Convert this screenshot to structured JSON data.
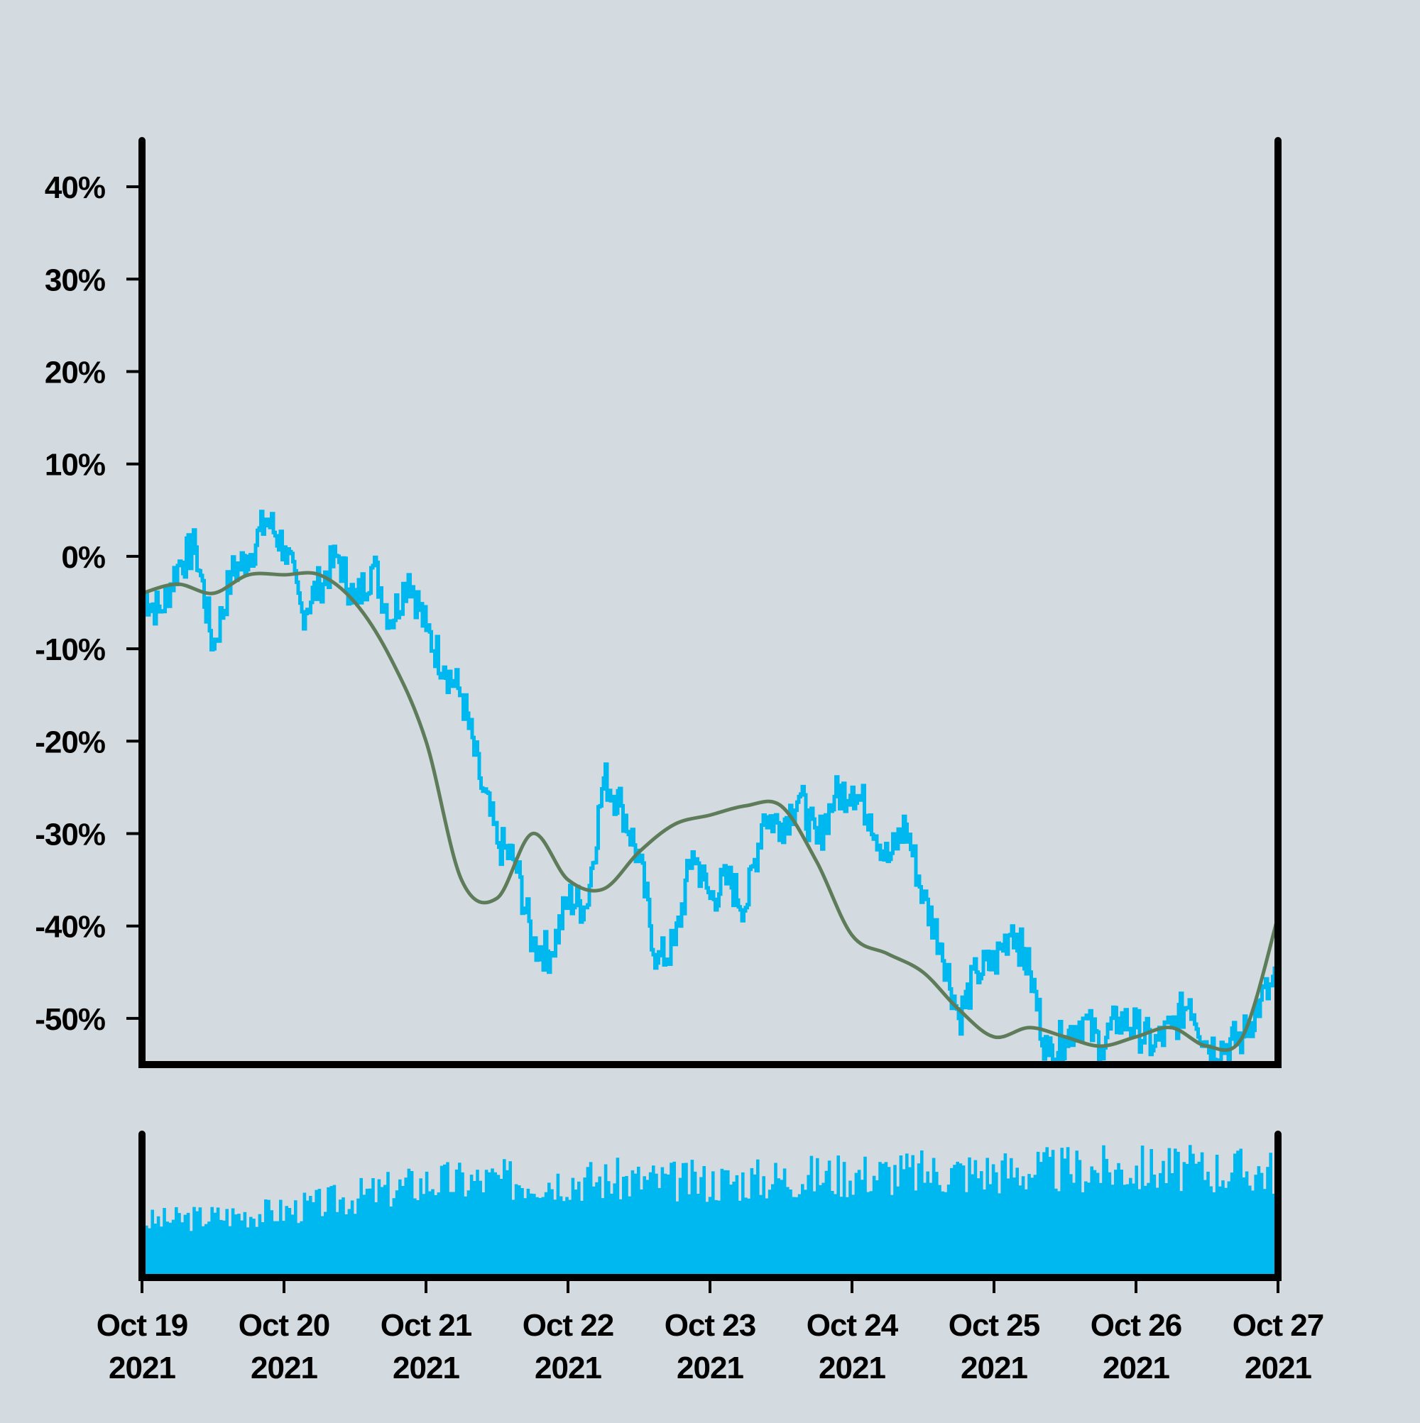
{
  "chart_data": {
    "type": "line",
    "title": "",
    "xlabel": "",
    "ylabel": "",
    "x_range": [
      "2021-10-19",
      "2021-10-27"
    ],
    "ylim": [
      -0.55,
      0.45
    ],
    "y_ticks": [
      0.4,
      0.3,
      0.2,
      0.1,
      0.0,
      -0.1,
      -0.2,
      -0.3,
      -0.4,
      -0.5
    ],
    "y_tick_labels": [
      "40%",
      "30%",
      "20%",
      "10%",
      "0%",
      "-10%",
      "-20%",
      "-30%",
      "-40%",
      "-50%"
    ],
    "x_tick_dates": [
      "2021-10-19",
      "2021-10-20",
      "2021-10-21",
      "2021-10-22",
      "2021-10-23",
      "2021-10-24",
      "2021-10-25",
      "2021-10-26",
      "2021-10-27"
    ],
    "x_tick_labels": [
      [
        "Oct 19",
        "2021"
      ],
      [
        "Oct 20",
        "2021"
      ],
      [
        "Oct 21",
        "2021"
      ],
      [
        "Oct 22",
        "2021"
      ],
      [
        "Oct 23",
        "2021"
      ],
      [
        "Oct 24",
        "2021"
      ],
      [
        "Oct 25",
        "2021"
      ],
      [
        "Oct 26",
        "2021"
      ],
      [
        "Oct 27",
        "2021"
      ]
    ],
    "grid": false,
    "legend": "none",
    "colors": {
      "background": "#d3dbe0",
      "price": "#00b8f0",
      "moving_average": "#5e7c5a",
      "volume": "#00b8f0",
      "axis": "#000000"
    },
    "series": [
      {
        "x": [
          "2021-10-19T00:00",
          "2021-10-19T03:00",
          "2021-10-19T06:00",
          "2021-10-19T09:00",
          "2021-10-19T12:00",
          "2021-10-19T15:00",
          "2021-10-19T18:00",
          "2021-10-19T21:00",
          "2021-10-20T00:00",
          "2021-10-20T03:00",
          "2021-10-20T06:00",
          "2021-10-20T09:00",
          "2021-10-20T12:00",
          "2021-10-20T15:00",
          "2021-10-20T18:00",
          "2021-10-20T21:00",
          "2021-10-21T00:00",
          "2021-10-21T03:00",
          "2021-10-21T06:00",
          "2021-10-21T09:00",
          "2021-10-21T12:00",
          "2021-10-21T15:00",
          "2021-10-21T18:00",
          "2021-10-21T21:00",
          "2021-10-22T00:00",
          "2021-10-22T03:00",
          "2021-10-22T06:00",
          "2021-10-22T09:00",
          "2021-10-22T12:00",
          "2021-10-22T15:00",
          "2021-10-22T18:00",
          "2021-10-22T21:00",
          "2021-10-23T00:00",
          "2021-10-23T03:00",
          "2021-10-23T06:00",
          "2021-10-23T09:00",
          "2021-10-23T12:00",
          "2021-10-23T15:00",
          "2021-10-23T18:00",
          "2021-10-23T21:00",
          "2021-10-24T00:00",
          "2021-10-24T03:00",
          "2021-10-24T06:00",
          "2021-10-24T09:00",
          "2021-10-24T12:00",
          "2021-10-24T15:00",
          "2021-10-24T18:00",
          "2021-10-24T21:00",
          "2021-10-25T00:00",
          "2021-10-25T03:00",
          "2021-10-25T06:00",
          "2021-10-25T09:00",
          "2021-10-25T12:00",
          "2021-10-25T15:00",
          "2021-10-25T18:00",
          "2021-10-25T21:00",
          "2021-10-26T00:00",
          "2021-10-26T03:00",
          "2021-10-26T06:00",
          "2021-10-26T09:00",
          "2021-10-26T12:00",
          "2021-10-26T15:00",
          "2021-10-26T18:00",
          "2021-10-26T21:00",
          "2021-10-27T00:00"
        ],
        "values": [
          -0.04,
          -0.06,
          -0.01,
          0.01,
          -0.1,
          -0.02,
          0.0,
          0.04,
          0.01,
          -0.06,
          -0.03,
          0.0,
          -0.05,
          -0.01,
          -0.07,
          -0.02,
          -0.08,
          -0.12,
          -0.15,
          -0.24,
          -0.31,
          -0.33,
          -0.42,
          -0.43,
          -0.37,
          -0.38,
          -0.24,
          -0.27,
          -0.33,
          -0.44,
          -0.42,
          -0.32,
          -0.37,
          -0.35,
          -0.38,
          -0.28,
          -0.29,
          -0.26,
          -0.31,
          -0.26,
          -0.25,
          -0.28,
          -0.33,
          -0.29,
          -0.37,
          -0.42,
          -0.5,
          -0.45,
          -0.44,
          -0.4,
          -0.45,
          -0.54,
          -0.52,
          -0.5,
          -0.53,
          -0.5,
          -0.51,
          -0.53,
          -0.51,
          -0.48,
          -0.53,
          -0.53,
          -0.52,
          -0.48,
          -0.46
        ]
      },
      {
        "x": [
          "2021-10-19T00:00",
          "2021-10-19T06:00",
          "2021-10-19T12:00",
          "2021-10-19T18:00",
          "2021-10-20T00:00",
          "2021-10-20T06:00",
          "2021-10-20T12:00",
          "2021-10-20T18:00",
          "2021-10-21T00:00",
          "2021-10-21T06:00",
          "2021-10-21T12:00",
          "2021-10-21T18:00",
          "2021-10-22T00:00",
          "2021-10-22T06:00",
          "2021-10-22T12:00",
          "2021-10-22T18:00",
          "2021-10-23T00:00",
          "2021-10-23T06:00",
          "2021-10-23T12:00",
          "2021-10-23T18:00",
          "2021-10-24T00:00",
          "2021-10-24T06:00",
          "2021-10-24T12:00",
          "2021-10-24T18:00",
          "2021-10-25T00:00",
          "2021-10-25T06:00",
          "2021-10-25T12:00",
          "2021-10-25T18:00",
          "2021-10-26T00:00",
          "2021-10-26T06:00",
          "2021-10-26T12:00",
          "2021-10-26T18:00",
          "2021-10-27T00:00"
        ],
        "values": [
          -0.04,
          -0.03,
          -0.04,
          -0.02,
          -0.02,
          -0.02,
          -0.05,
          -0.11,
          -0.2,
          -0.35,
          -0.37,
          -0.3,
          -0.35,
          -0.36,
          -0.32,
          -0.29,
          -0.28,
          -0.27,
          -0.27,
          -0.33,
          -0.41,
          -0.43,
          -0.45,
          -0.49,
          -0.52,
          -0.51,
          -0.52,
          -0.53,
          -0.52,
          -0.51,
          -0.53,
          -0.52,
          -0.39
        ]
      }
    ],
    "volume": {
      "x": [
        "2021-10-19",
        "2021-10-20",
        "2021-10-21",
        "2021-10-22",
        "2021-10-23",
        "2021-10-24",
        "2021-10-25",
        "2021-10-26",
        "2021-10-27"
      ],
      "values": [
        0.42,
        0.5,
        0.72,
        0.74,
        0.72,
        0.78,
        0.8,
        0.82,
        0.8
      ],
      "ylim": [
        0,
        1
      ]
    }
  }
}
